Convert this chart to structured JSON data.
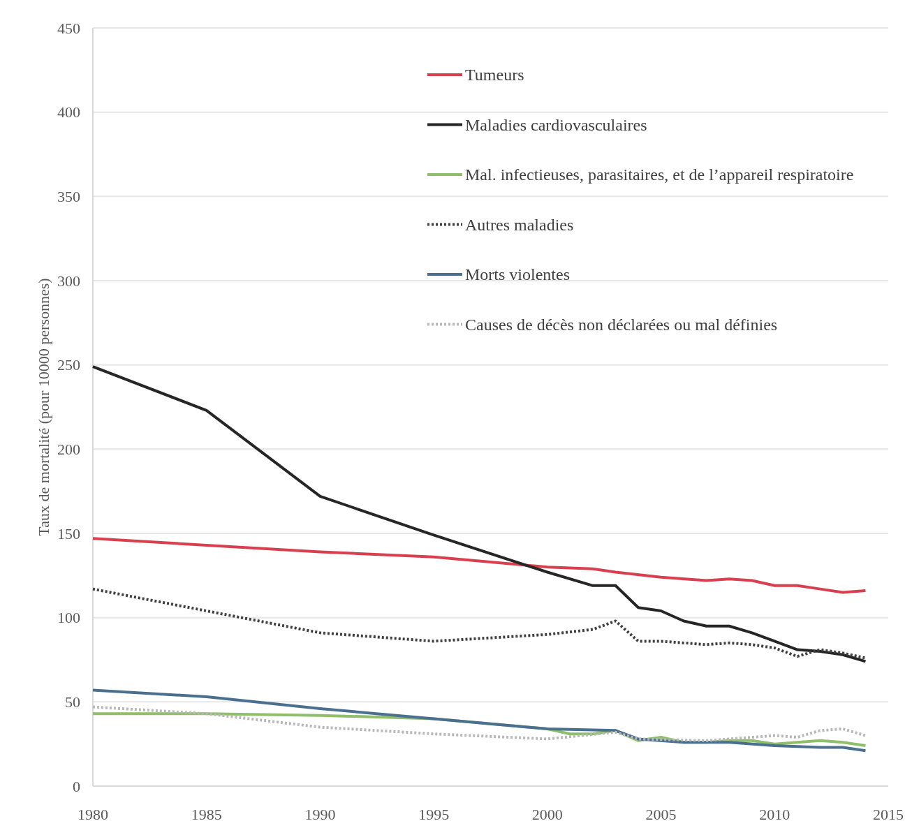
{
  "chart_data": {
    "type": "line",
    "ylabel": "Taux de mortalité (pour 10000 personnes)",
    "xlim": [
      1980,
      2015
    ],
    "xticks": [
      1980,
      1985,
      1990,
      1995,
      2000,
      2005,
      2010,
      2015
    ],
    "ylim": [
      0,
      450
    ],
    "yticks": [
      0,
      50,
      100,
      150,
      200,
      250,
      300,
      350,
      400,
      450
    ],
    "grid": "y",
    "legend": "top right",
    "series": [
      {
        "name": "Tumeurs",
        "color": "#d9404f",
        "line_style": "solid",
        "x": [
          1980,
          1985,
          1990,
          1995,
          2000,
          2002,
          2003,
          2005,
          2007,
          2008,
          2009,
          2010,
          2011,
          2012,
          2013,
          2014
        ],
        "values": [
          147,
          143,
          139,
          136,
          130,
          129,
          127,
          124,
          122,
          123,
          122,
          119,
          119,
          117,
          115,
          116
        ]
      },
      {
        "name": "Maladies  cardiovasculaires",
        "color": "#262626",
        "line_style": "solid",
        "x": [
          1980,
          1985,
          1990,
          1995,
          2000,
          2002,
          2003,
          2004,
          2005,
          2006,
          2007,
          2008,
          2009,
          2010,
          2011,
          2012,
          2013,
          2014
        ],
        "values": [
          249,
          223,
          172,
          149,
          127,
          119,
          119,
          106,
          104,
          98,
          95,
          95,
          91,
          86,
          81,
          80,
          78,
          74
        ]
      },
      {
        "name": "Mal. infectieuses, parasitaires, et de l’appareil respiratoire",
        "color": "#8fbf6a",
        "line_style": "solid",
        "x": [
          1980,
          1985,
          1990,
          1995,
          2000,
          2001,
          2002,
          2003,
          2004,
          2005,
          2006,
          2007,
          2008,
          2009,
          2010,
          2011,
          2012,
          2013,
          2014
        ],
        "values": [
          43,
          43,
          42,
          40,
          34,
          31,
          31,
          33,
          27,
          29,
          26,
          26,
          27,
          27,
          25,
          26,
          27,
          26,
          24
        ]
      },
      {
        "name": "Autres maladies",
        "color": "#404040",
        "line_style": "dotted",
        "x": [
          1980,
          1985,
          1990,
          1995,
          2000,
          2002,
          2003,
          2004,
          2005,
          2007,
          2008,
          2009,
          2010,
          2011,
          2012,
          2013,
          2014
        ],
        "values": [
          117,
          104,
          91,
          86,
          90,
          93,
          98,
          86,
          86,
          84,
          85,
          84,
          82,
          77,
          81,
          79,
          76
        ]
      },
      {
        "name": "Morts violentes",
        "color": "#4a6f8f",
        "line_style": "solid",
        "x": [
          1980,
          1985,
          1990,
          1995,
          2000,
          2003,
          2004,
          2006,
          2008,
          2010,
          2012,
          2013,
          2014
        ],
        "values": [
          57,
          53,
          46,
          40,
          34,
          33,
          28,
          26,
          26,
          24,
          23,
          23,
          21
        ]
      },
      {
        "name": "Causes de décès non déclarées ou mal définies",
        "color": "#b8b8b8",
        "line_style": "dotted",
        "x": [
          1980,
          1985,
          1990,
          1995,
          2000,
          2003,
          2004,
          2007,
          2010,
          2011,
          2012,
          2013,
          2014
        ],
        "values": [
          47,
          43,
          35,
          31,
          28,
          32,
          28,
          27,
          30,
          29,
          33,
          34,
          30
        ]
      }
    ]
  }
}
